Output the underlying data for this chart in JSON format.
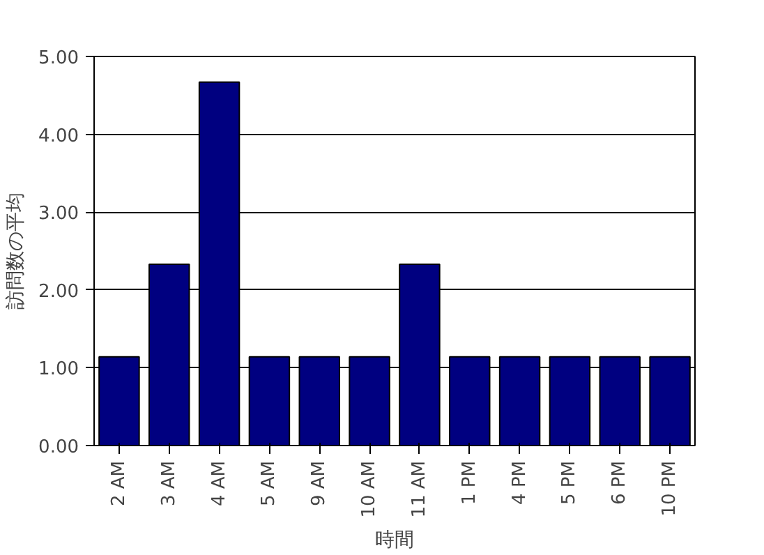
{
  "chart_data": {
    "type": "bar",
    "xlabel": "時間",
    "ylabel": "訪問数の平均",
    "categories": [
      "2 AM",
      "3 AM",
      "4 AM",
      "5 AM",
      "9 AM",
      "10 AM",
      "11 AM",
      "1 PM",
      "4 PM",
      "5 PM",
      "6 PM",
      "10 PM"
    ],
    "values": [
      1.14,
      2.33,
      4.67,
      1.14,
      1.14,
      1.14,
      2.33,
      1.14,
      1.14,
      1.14,
      1.14,
      1.14
    ],
    "color": "#000080",
    "ylim": [
      0,
      5
    ],
    "yticks": [
      {
        "value": 0,
        "label": "0.00"
      },
      {
        "value": 1,
        "label": "1.00"
      },
      {
        "value": 2,
        "label": "2.00"
      },
      {
        "value": 3,
        "label": "3.00"
      },
      {
        "value": 4,
        "label": "4.00"
      },
      {
        "value": 5,
        "label": "5.00"
      }
    ],
    "grid": "y"
  }
}
